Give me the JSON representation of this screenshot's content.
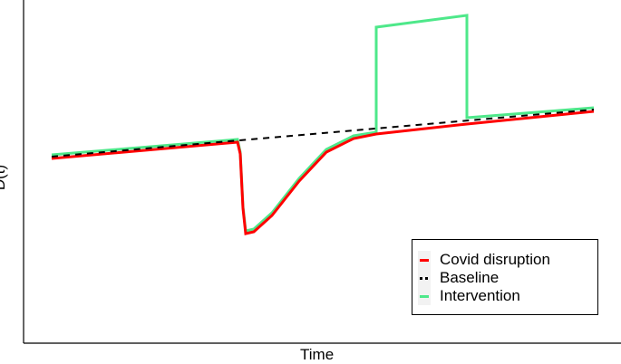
{
  "chart_data": {
    "type": "line",
    "title": "",
    "xlabel": "Time",
    "ylabel": "D(t)",
    "grid": false,
    "legend_position": "bottom-right",
    "series": [
      {
        "name": "Covid disruption",
        "color": "#ff0000",
        "style": "solid",
        "points": [
          [
            57,
            175
          ],
          [
            262,
            157
          ],
          [
            265,
            170
          ],
          [
            268,
            230
          ],
          [
            271,
            258
          ],
          [
            280,
            256
          ],
          [
            300,
            238
          ],
          [
            330,
            200
          ],
          [
            360,
            168
          ],
          [
            390,
            153
          ],
          [
            415,
            148
          ],
          [
            515,
            137
          ],
          [
            655,
            123
          ]
        ]
      },
      {
        "name": "Baseline",
        "color": "#000000",
        "style": "dashed",
        "points": [
          [
            57,
            173
          ],
          [
            655,
            121
          ]
        ]
      },
      {
        "name": "Intervention",
        "color": "#4ee88a",
        "style": "solid",
        "points": [
          [
            57,
            171
          ],
          [
            262,
            154
          ],
          [
            265,
            168
          ],
          [
            268,
            228
          ],
          [
            271,
            255
          ],
          [
            280,
            253
          ],
          [
            300,
            235
          ],
          [
            330,
            197
          ],
          [
            360,
            165
          ],
          [
            390,
            150
          ],
          [
            415,
            146
          ],
          [
            415,
            30
          ],
          [
            515,
            17
          ],
          [
            515,
            130
          ],
          [
            655,
            119
          ]
        ]
      }
    ]
  },
  "legend": {
    "items": [
      {
        "label": "Covid disruption",
        "color": "#ff0000"
      },
      {
        "label": "Baseline",
        "color": "#000000"
      },
      {
        "label": "Intervention",
        "color": "#4ee88a"
      }
    ]
  }
}
